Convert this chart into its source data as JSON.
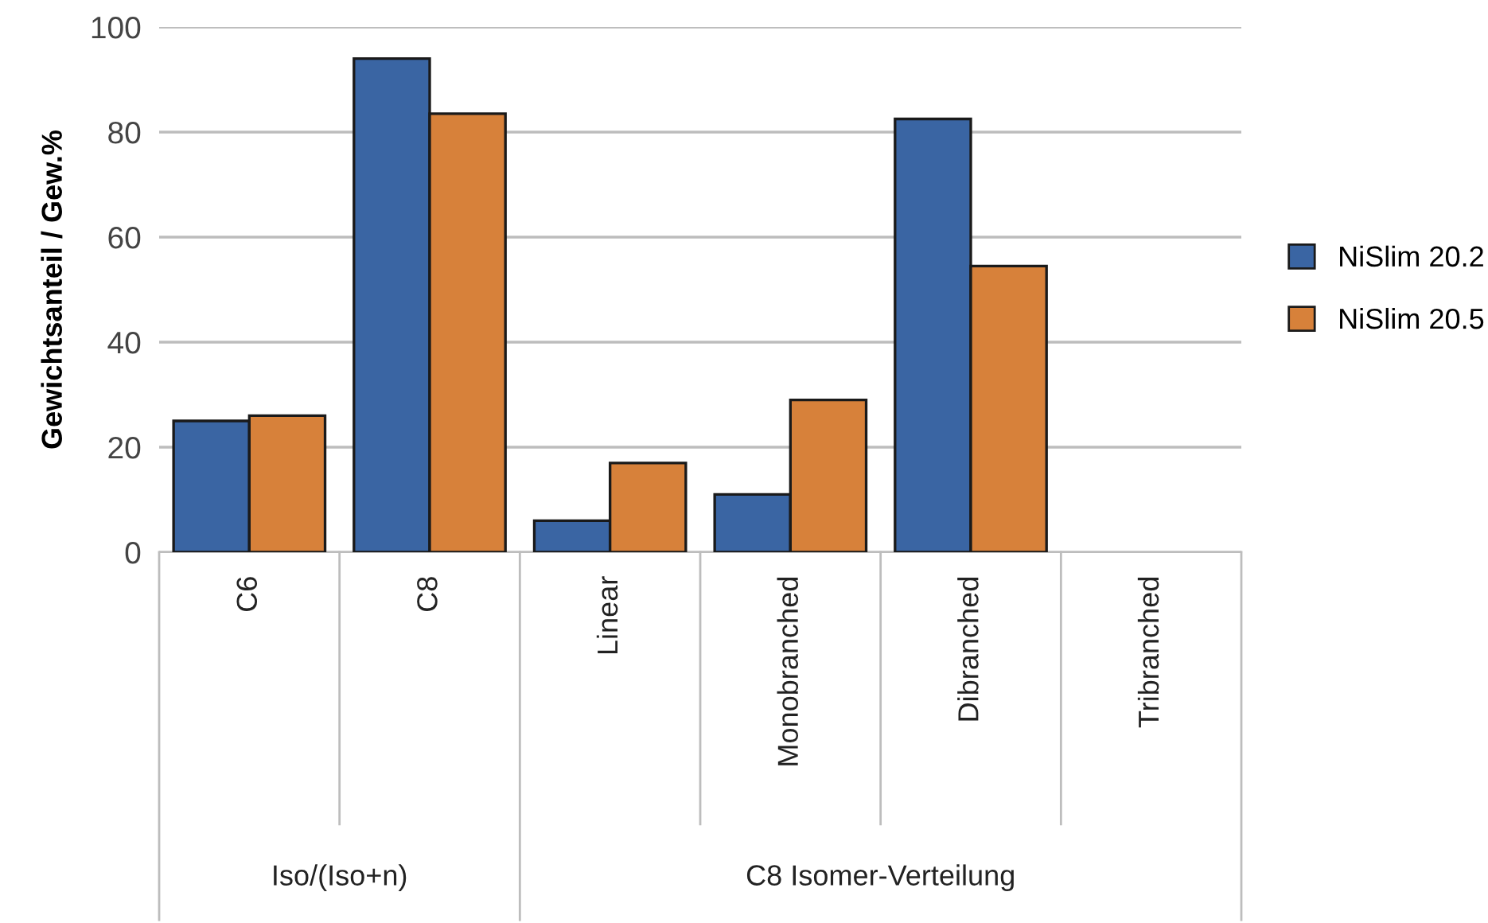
{
  "chart_data": {
    "type": "bar",
    "ylabel": "Gewichtsanteil / Gew.%",
    "categories": [
      "C6",
      "C8",
      "Linear",
      "Monobranched",
      "Dibranched",
      "Tribranched"
    ],
    "series": [
      {
        "name": "NiSlim 20.2",
        "color": "#3a65a3",
        "values": [
          25,
          94,
          6,
          11,
          82.5,
          null
        ]
      },
      {
        "name": "NiSlim 20.5",
        "color": "#d7813a",
        "values": [
          26,
          83.5,
          17,
          29,
          54.5,
          null
        ]
      }
    ],
    "ylim": [
      0,
      100
    ],
    "yticks": [
      0,
      20,
      40,
      60,
      80,
      100
    ],
    "grid": "y",
    "legend": "right",
    "annotations": [
      "Iso/(Iso+n)",
      "C8 Isomer-Verteilung"
    ]
  }
}
